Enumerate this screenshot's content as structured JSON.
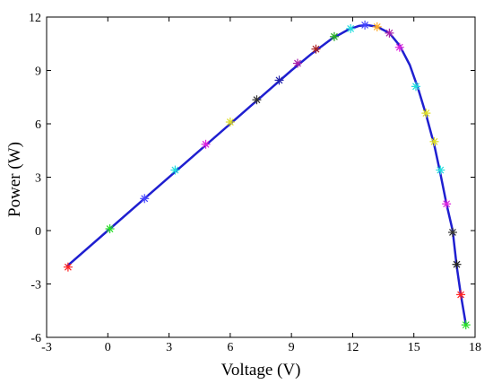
{
  "chart_data": {
    "type": "line",
    "title": "",
    "xlabel": "Voltage (V)",
    "ylabel": "Power (W)",
    "xlim": [
      -3,
      18
    ],
    "ylim": [
      -6,
      12
    ],
    "xticks": [
      -3,
      0,
      3,
      6,
      9,
      12,
      15,
      18
    ],
    "yticks": [
      -6,
      -3,
      0,
      3,
      6,
      9,
      12
    ],
    "grid": false,
    "legend": "none",
    "line_color": "#1f1fd0",
    "series": [
      {
        "curve": [
          [
            -2.0,
            -2.0
          ],
          [
            0.0,
            0.0
          ],
          [
            2.0,
            2.0
          ],
          [
            4.0,
            4.0
          ],
          [
            6.0,
            6.0
          ],
          [
            7.0,
            7.0
          ],
          [
            8.0,
            8.0
          ],
          [
            9.0,
            9.0
          ],
          [
            10.0,
            9.95
          ],
          [
            11.0,
            10.8
          ],
          [
            11.8,
            11.3
          ],
          [
            12.3,
            11.5
          ],
          [
            12.7,
            11.55
          ],
          [
            13.2,
            11.45
          ],
          [
            13.8,
            11.1
          ],
          [
            14.3,
            10.4
          ],
          [
            14.8,
            9.3
          ],
          [
            15.2,
            8.0
          ],
          [
            15.6,
            6.5
          ],
          [
            16.0,
            4.8
          ],
          [
            16.3,
            3.2
          ],
          [
            16.6,
            1.5
          ],
          [
            16.9,
            0.0
          ],
          [
            17.1,
            -2.0
          ],
          [
            17.3,
            -3.6
          ],
          [
            17.55,
            -5.3
          ]
        ],
        "markers": [
          {
            "x": -1.95,
            "y": -2.05,
            "color": "#ff2222"
          },
          {
            "x": 0.1,
            "y": 0.1,
            "color": "#22dd22"
          },
          {
            "x": 1.8,
            "y": 1.8,
            "color": "#4444ff"
          },
          {
            "x": 3.3,
            "y": 3.4,
            "color": "#22dddd"
          },
          {
            "x": 4.8,
            "y": 4.85,
            "color": "#dd22dd"
          },
          {
            "x": 6.0,
            "y": 6.1,
            "color": "#dddd22"
          },
          {
            "x": 7.3,
            "y": 7.35,
            "color": "#333333"
          },
          {
            "x": 8.4,
            "y": 8.45,
            "color": "#2222aa"
          },
          {
            "x": 9.3,
            "y": 9.4,
            "color": "#aa22aa"
          },
          {
            "x": 10.2,
            "y": 10.2,
            "color": "#aa2222"
          },
          {
            "x": 11.1,
            "y": 10.9,
            "color": "#22aa22"
          },
          {
            "x": 11.9,
            "y": 11.35,
            "color": "#22dddd"
          },
          {
            "x": 12.6,
            "y": 11.55,
            "color": "#4444ff"
          },
          {
            "x": 13.2,
            "y": 11.45,
            "color": "#ffaa22"
          },
          {
            "x": 13.8,
            "y": 11.1,
            "color": "#aa22aa"
          },
          {
            "x": 14.3,
            "y": 10.3,
            "color": "#dd22dd"
          },
          {
            "x": 15.1,
            "y": 8.1,
            "color": "#22dddd"
          },
          {
            "x": 15.6,
            "y": 6.6,
            "color": "#dddd22"
          },
          {
            "x": 16.0,
            "y": 5.0,
            "color": "#dddd22"
          },
          {
            "x": 16.3,
            "y": 3.4,
            "color": "#22dddd"
          },
          {
            "x": 16.6,
            "y": 1.5,
            "color": "#dd22dd"
          },
          {
            "x": 16.9,
            "y": -0.1,
            "color": "#333333"
          },
          {
            "x": 17.1,
            "y": -1.9,
            "color": "#222222"
          },
          {
            "x": 17.3,
            "y": -3.6,
            "color": "#ff2222"
          },
          {
            "x": 17.55,
            "y": -5.3,
            "color": "#22dd22"
          }
        ]
      }
    ]
  }
}
